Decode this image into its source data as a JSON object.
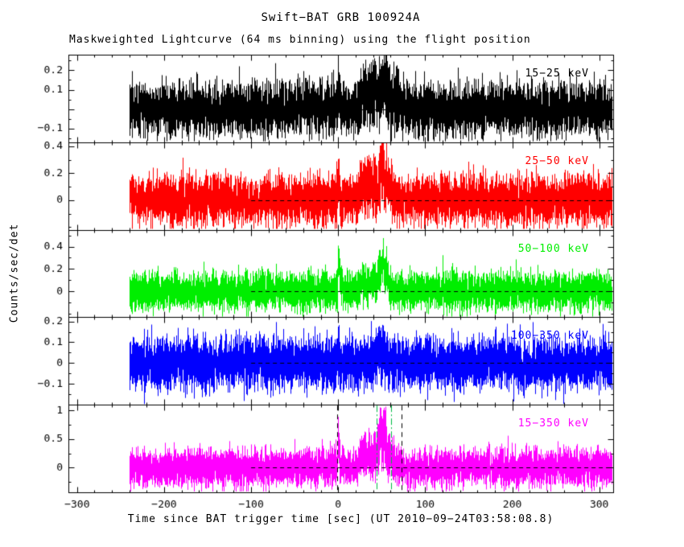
{
  "title": "Swift−BAT GRB 100924A",
  "subtitle": "Maskweighted Lightcurve (64 ms binning) using the flight position",
  "xlabel": "Time since BAT trigger time [sec] (UT 2010−09−24T03:58:08.8)",
  "ylabel": "Counts/sec/det",
  "chart_data": {
    "type": "line",
    "title": "Swift−BAT GRB 100924A",
    "subtitle": "Maskweighted Lightcurve (64 ms binning) using the flight position",
    "xlabel": "Time since BAT trigger time [sec] (UT 2010−09−24T03:58:08.8)",
    "ylabel": "Counts/sec/det",
    "x_axis": {
      "range": [
        -310,
        316
      ],
      "data_start": -240,
      "data_end": 316,
      "minor_step": 20,
      "ticks": [
        {
          "v": -300,
          "label": "−300"
        },
        {
          "v": -200,
          "label": "−200"
        },
        {
          "v": -100,
          "label": "−100"
        },
        {
          "v": 0,
          "label": "0"
        },
        {
          "v": 100,
          "label": "100"
        },
        {
          "v": 200,
          "label": "200"
        },
        {
          "v": 300,
          "label": "300"
        }
      ]
    },
    "zero_line": {
      "style": "dashed",
      "value": 0,
      "from": -100,
      "to": 316,
      "color": "#000000"
    },
    "panels": [
      {
        "band_label": "15−25 keV",
        "color": "#000000",
        "y_range": [
          -0.17,
          0.28
        ],
        "y_minor_step": 0.05,
        "y_ticks": [
          {
            "v": 0.2,
            "label": "0.2"
          },
          {
            "v": 0.1,
            "label": "0.1"
          },
          {
            "v": 0,
            "label": ""
          },
          {
            "v": -0.1,
            "label": "−0.1"
          }
        ],
        "baseline": 0,
        "noise_sigma": 0.065,
        "burst_peaks": [
          {
            "t": 0,
            "amp": 0.1,
            "sigma": 1.2
          },
          {
            "t": 27,
            "amp": 0.06,
            "sigma": 3
          },
          {
            "t": 34,
            "amp": 0.07,
            "sigma": 3
          },
          {
            "t": 41,
            "amp": 0.09,
            "sigma": 2.5
          },
          {
            "t": 48,
            "amp": 0.11,
            "sigma": 2.5
          },
          {
            "t": 53,
            "amp": 0.1,
            "sigma": 2
          },
          {
            "t": 58,
            "amp": 0.06,
            "sigma": 3
          },
          {
            "t": 65,
            "amp": 0.04,
            "sigma": 4
          }
        ]
      },
      {
        "band_label": "25−50 keV",
        "color": "#ff0000",
        "y_range": [
          -0.22,
          0.43
        ],
        "y_minor_step": 0.1,
        "y_ticks": [
          {
            "v": 0.4,
            "label": "0.4"
          },
          {
            "v": 0.2,
            "label": "0.2"
          },
          {
            "v": 0,
            "label": "0"
          }
        ],
        "baseline": 0,
        "noise_sigma": 0.09,
        "burst_peaks": [
          {
            "t": 0,
            "amp": 0.13,
            "sigma": 1.0
          },
          {
            "t": 27,
            "amp": 0.09,
            "sigma": 3
          },
          {
            "t": 34,
            "amp": 0.08,
            "sigma": 2.5
          },
          {
            "t": 41,
            "amp": 0.11,
            "sigma": 2.5
          },
          {
            "t": 48,
            "amp": 0.2,
            "sigma": 2
          },
          {
            "t": 52,
            "amp": 0.16,
            "sigma": 2
          },
          {
            "t": 56,
            "amp": 0.11,
            "sigma": 2.5
          },
          {
            "t": 63,
            "amp": 0.05,
            "sigma": 4
          }
        ]
      },
      {
        "band_label": "50−100 keV",
        "color": "#00ee00",
        "y_range": [
          -0.23,
          0.55
        ],
        "y_minor_step": 0.1,
        "y_ticks": [
          {
            "v": 0.4,
            "label": "0.4"
          },
          {
            "v": 0.2,
            "label": "0.2"
          },
          {
            "v": 0,
            "label": "0"
          }
        ],
        "baseline": 0,
        "noise_sigma": 0.08,
        "burst_peaks": [
          {
            "t": 0,
            "amp": 0.28,
            "sigma": 0.7
          },
          {
            "t": 2,
            "amp": 0.08,
            "sigma": 1.5
          },
          {
            "t": 27,
            "amp": 0.08,
            "sigma": 2
          },
          {
            "t": 34,
            "amp": 0.1,
            "sigma": 2
          },
          {
            "t": 41,
            "amp": 0.18,
            "sigma": 1.5
          },
          {
            "t": 47,
            "amp": 0.17,
            "sigma": 1.5
          },
          {
            "t": 51,
            "amp": 0.22,
            "sigma": 1.5
          },
          {
            "t": 55,
            "amp": 0.13,
            "sigma": 2
          },
          {
            "t": 120,
            "amp": 0.18,
            "sigma": 0.4
          }
        ]
      },
      {
        "band_label": "100−350 keV",
        "color": "#0000ff",
        "y_range": [
          -0.2,
          0.22
        ],
        "y_minor_step": 0.05,
        "y_ticks": [
          {
            "v": 0.2,
            "label": "0.2"
          },
          {
            "v": 0.1,
            "label": "0.1"
          },
          {
            "v": 0,
            "label": "0"
          },
          {
            "v": -0.1,
            "label": "−0.1"
          }
        ],
        "baseline": 0,
        "noise_sigma": 0.06,
        "burst_peaks": [
          {
            "t": 0,
            "amp": 0.08,
            "sigma": 0.6
          },
          {
            "t": 41,
            "amp": 0.04,
            "sigma": 2
          },
          {
            "t": 47,
            "amp": 0.08,
            "sigma": 1.5
          },
          {
            "t": 52,
            "amp": 0.05,
            "sigma": 2
          }
        ]
      },
      {
        "band_label": "15−350 keV",
        "color": "#ff00ff",
        "y_range": [
          -0.43,
          1.1
        ],
        "y_minor_step": 0.25,
        "y_ticks": [
          {
            "v": 1,
            "label": "1"
          },
          {
            "v": 0.5,
            "label": "0.5"
          },
          {
            "v": 0,
            "label": "0"
          }
        ],
        "baseline": 0,
        "noise_sigma": 0.16,
        "burst_peaks": [
          {
            "t": 0,
            "amp": 0.4,
            "sigma": 0.9
          },
          {
            "t": 27,
            "amp": 0.2,
            "sigma": 3
          },
          {
            "t": 34,
            "amp": 0.18,
            "sigma": 2.5
          },
          {
            "t": 41,
            "amp": 0.28,
            "sigma": 2.5
          },
          {
            "t": 48,
            "amp": 0.5,
            "sigma": 2
          },
          {
            "t": 52,
            "amp": 0.38,
            "sigma": 2
          },
          {
            "t": 56,
            "amp": 0.25,
            "sigma": 2.5
          },
          {
            "t": 63,
            "amp": 0.1,
            "sigma": 4
          }
        ],
        "vlines": [
          {
            "t": -1,
            "color": "#000000",
            "dash": [
              6,
              5
            ],
            "style": "dashed"
          },
          {
            "t": 44,
            "color": "#00bb44",
            "dash": [
              8,
              3,
              2,
              3
            ],
            "style": "dash-dot"
          },
          {
            "t": 61,
            "color": "#00bb44",
            "dash": [
              8,
              3,
              2,
              3
            ],
            "style": "dash-dot"
          },
          {
            "t": 73,
            "color": "#000000",
            "dash": [
              6,
              5
            ],
            "style": "dashed"
          }
        ]
      }
    ]
  }
}
